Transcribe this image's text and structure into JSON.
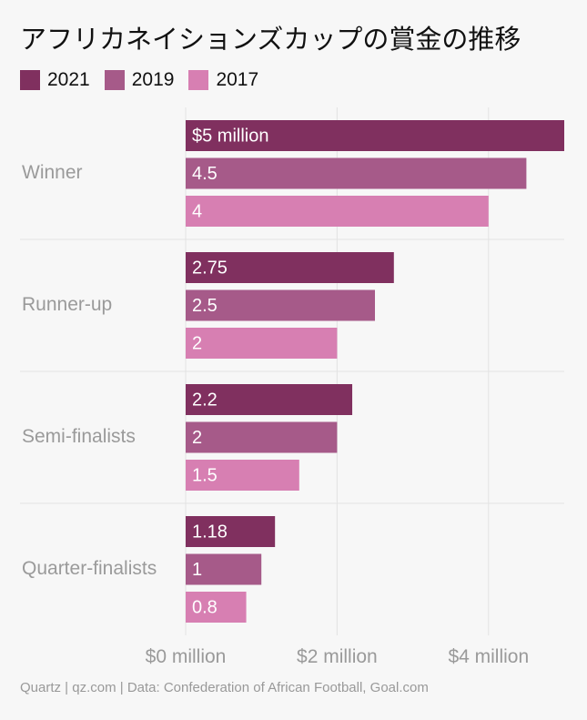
{
  "chart_data": {
    "type": "bar",
    "orientation": "horizontal",
    "title": "アフリカネイションズカップの賞金の推移",
    "categories": [
      "Winner",
      "Runner-up",
      "Semi-finalists",
      "Quarter-finalists"
    ],
    "series": [
      {
        "name": "2021",
        "color": "#80305f",
        "values": [
          5,
          2.75,
          2.2,
          1.18
        ],
        "labels": [
          "$5 million",
          "2.75",
          "2.2",
          "1.18"
        ]
      },
      {
        "name": "2019",
        "color": "#a65a89",
        "values": [
          4.5,
          2.5,
          2,
          1
        ],
        "labels": [
          "4.5",
          "2.5",
          "2",
          "1"
        ]
      },
      {
        "name": "2017",
        "color": "#d77fb2",
        "values": [
          4,
          2,
          1.5,
          0.8
        ],
        "labels": [
          "4",
          "2",
          "1.5",
          "0.8"
        ]
      }
    ],
    "xlim": [
      0,
      5
    ],
    "xticks": [
      0,
      2,
      4
    ],
    "xtick_labels": [
      "$0 million",
      "$2 million",
      "$4 million"
    ],
    "xlabel": "",
    "ylabel": "",
    "grid": true,
    "legend": "top-left"
  },
  "source": "Quartz | qz.com | Data: Confederation of African Football, Goal.com"
}
